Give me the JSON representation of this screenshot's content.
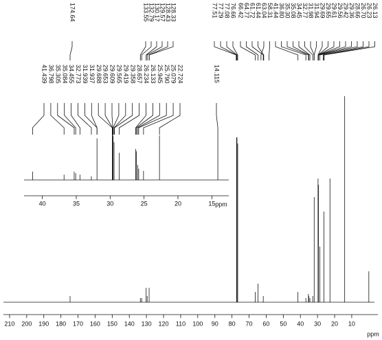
{
  "chart_data": {
    "type": "spectrum",
    "xlabel": "ppm",
    "xlim": [
      215.6,
      -7.7
    ],
    "xticks": [
      210,
      200,
      190,
      180,
      170,
      160,
      150,
      140,
      130,
      120,
      110,
      100,
      90,
      80,
      70,
      60,
      50,
      40,
      30,
      20,
      10
    ],
    "ylim": [
      0,
      100
    ],
    "color": "#000000",
    "x": [
      174.64,
      133.55,
      132.79,
      130.17,
      129.57,
      128.43,
      77.29,
      77.08,
      76.66,
      66.42,
      64.77,
      61.72,
      41.44,
      36.8,
      35.3,
      35.08,
      34.45,
      32.77,
      31.94,
      29.69,
      29.42,
      28.66,
      26.23,
      22.72,
      14.12,
      0
    ],
    "values": [
      3,
      2,
      2,
      7,
      3,
      7,
      80,
      80,
      77,
      5,
      9,
      3,
      5,
      2,
      4,
      3,
      2,
      3,
      51,
      60,
      57,
      27,
      44,
      60,
      100,
      15
    ],
    "label_groups": [
      [
        "174.64"
      ],
      [
        "133.55",
        "132.79",
        "130.17",
        "129.57",
        "128.43",
        "128.33"
      ],
      [
        "77.51",
        "77.29",
        "77.08",
        "76.66"
      ],
      [
        "66.42",
        "64.77",
        "61.72",
        "61.44",
        "63.04",
        "58.31",
        "41.44",
        "36.80",
        "35.30",
        "35.08",
        "34.45",
        "32.77",
        "31.98",
        "31.94",
        "29.69",
        "29.65",
        "29.61",
        "29.56",
        "29.42",
        "29.36",
        "28.66",
        "26.70",
        "26.23",
        "26.13"
      ]
    ],
    "inset": {
      "type": "spectrum",
      "xlabel": "ppm",
      "xlim": [
        42.7,
        12.5
      ],
      "xticks": [
        40,
        35,
        30,
        25,
        20,
        15
      ],
      "ylim": [
        0,
        100
      ],
      "x": [
        41.439,
        36.798,
        35.305,
        35.084,
        34.455,
        32.773,
        31.939,
        29.688,
        29.609,
        29.565,
        29.419,
        28.657,
        26.234,
        26.133,
        25.945,
        25.79,
        25.079,
        22.724,
        14.115
      ],
      "values": [
        11,
        7,
        11,
        9,
        7,
        5,
        55,
        64,
        60,
        58,
        50,
        36,
        41,
        38,
        20,
        15,
        12,
        59,
        60
      ],
      "label_groups": [
        [
          "41.439",
          "36.798",
          "35.305",
          "35.084",
          "34.455",
          "32.773",
          "31.939",
          "31.937",
          "29.688",
          "29.653",
          "29.609",
          "29.565",
          "29.419",
          "29.358",
          "28.657",
          "26.234",
          "26.133",
          "25.945",
          "25.790",
          "25.079",
          "22.724"
        ],
        [
          "14.115"
        ]
      ]
    }
  }
}
